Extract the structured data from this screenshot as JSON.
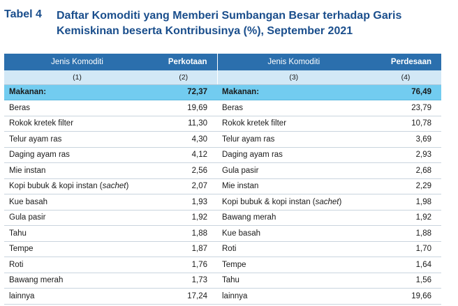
{
  "header": {
    "tabel_no": "Tabel 4",
    "title": "Daftar Komoditi yang Memberi Sumbangan Besar terhadap Garis Kemiskinan beserta Kontribusinya (%), September 2021"
  },
  "table": {
    "columns": [
      "Jenis Komoditi",
      "Perkotaan",
      "Jenis Komoditi",
      "Perdesaan"
    ],
    "column_numbers": [
      "(1)",
      "(2)",
      "(3)",
      "(4)"
    ],
    "rows": [
      {
        "urban_item": "Makanan:",
        "urban_value": "72,37",
        "rural_item": "Makanan:",
        "rural_value": "76,49"
      },
      {
        "urban_item": "Beras",
        "urban_value": "19,69",
        "rural_item": "Beras",
        "rural_value": "23,79"
      },
      {
        "urban_item": "Rokok kretek filter",
        "urban_value": "11,30",
        "rural_item": "Rokok kretek filter",
        "rural_value": "10,78"
      },
      {
        "urban_item": "Telur ayam ras",
        "urban_value": "4,30",
        "rural_item": "Telur ayam ras",
        "rural_value": "3,69"
      },
      {
        "urban_item": "Daging ayam ras",
        "urban_value": "4,12",
        "rural_item": "Daging ayam ras",
        "rural_value": "2,93"
      },
      {
        "urban_item": "Mie instan",
        "urban_value": "2,56",
        "rural_item": "Gula pasir",
        "rural_value": "2,68"
      },
      {
        "urban_item": "Kopi bubuk & kopi instan (sachet)",
        "urban_value": "2,07",
        "rural_item": "Mie instan",
        "rural_value": "2,29"
      },
      {
        "urban_item": "Kue basah",
        "urban_value": "1,93",
        "rural_item": "Kopi bubuk & kopi instan (sachet)",
        "rural_value": "1,98"
      },
      {
        "urban_item": "Gula pasir",
        "urban_value": "1,92",
        "rural_item": "Bawang merah",
        "rural_value": "1,92"
      },
      {
        "urban_item": "Tahu",
        "urban_value": "1,88",
        "rural_item": "Kue basah",
        "rural_value": "1,88"
      },
      {
        "urban_item": "Tempe",
        "urban_value": "1,87",
        "rural_item": "Roti",
        "rural_value": "1,70"
      },
      {
        "urban_item": "Roti",
        "urban_value": "1,76",
        "rural_item": "Tempe",
        "rural_value": "1,64"
      },
      {
        "urban_item": "Bawang merah",
        "urban_value": "1,73",
        "rural_item": "Tahu",
        "rural_value": "1,56"
      },
      {
        "urban_item": "lainnya",
        "urban_value": "17,24",
        "rural_item": "lainnya",
        "rural_value": "19,66"
      }
    ]
  }
}
